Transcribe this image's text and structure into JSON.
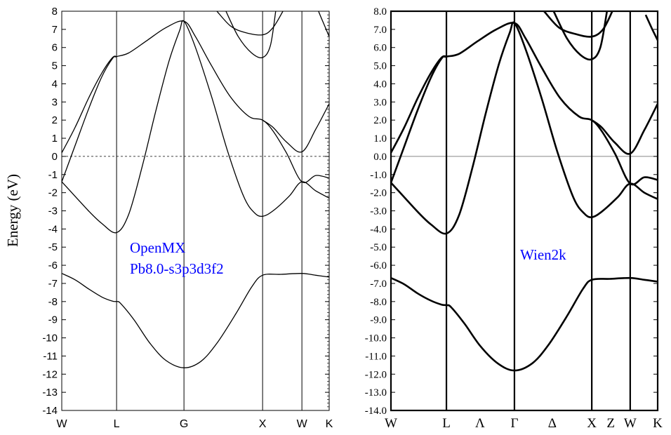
{
  "chart_data": [
    {
      "type": "line",
      "title": "",
      "ylabel": "Energy (eV)",
      "ylim": [
        -14,
        8
      ],
      "yticks": [
        8,
        7,
        6,
        5,
        4,
        3,
        2,
        1,
        0,
        -1,
        -2,
        -3,
        -4,
        -5,
        -6,
        -7,
        -8,
        -9,
        -10,
        -11,
        -12,
        -13,
        -14
      ],
      "ytick_labels": [
        "8",
        "7",
        "6",
        "5",
        "4",
        "3",
        "2",
        "1",
        "0",
        "-1",
        "-2",
        "-3",
        "-4",
        "-5",
        "-6",
        "-7",
        "-8",
        "-9",
        "-10",
        "-11",
        "-12",
        "-13",
        "-14"
      ],
      "kpoints": [
        {
          "label": "W",
          "k": 0,
          "line": false
        },
        {
          "label": "L",
          "k": 0.205,
          "line": true
        },
        {
          "label": "G",
          "k": 0.457,
          "line": true
        },
        {
          "label": "X",
          "k": 0.751,
          "line": true
        },
        {
          "label": "W",
          "k": 0.898,
          "line": true
        },
        {
          "label": "K",
          "k": 1,
          "line": false
        }
      ],
      "fermi_level": 0,
      "annotation": [
        "OpenMX",
        "Pb8.0-s3p3d3f2"
      ],
      "annotation_color": "#0000ff",
      "bands": [
        [
          [
            0,
            -6.45
          ],
          [
            0.05,
            -6.8
          ],
          [
            0.1,
            -7.3
          ],
          [
            0.15,
            -7.75
          ],
          [
            0.19,
            -7.98
          ],
          [
            0.205,
            -8.0
          ],
          [
            0.22,
            -8.1
          ],
          [
            0.27,
            -9.0
          ],
          [
            0.33,
            -10.3
          ],
          [
            0.39,
            -11.25
          ],
          [
            0.457,
            -11.65
          ],
          [
            0.52,
            -11.3
          ],
          [
            0.58,
            -10.3
          ],
          [
            0.65,
            -8.7
          ],
          [
            0.71,
            -7.2
          ],
          [
            0.751,
            -6.55
          ],
          [
            0.82,
            -6.5
          ],
          [
            0.898,
            -6.45
          ],
          [
            0.95,
            -6.55
          ],
          [
            1,
            -6.65
          ]
        ],
        [
          [
            0,
            -1.4
          ],
          [
            0.05,
            -2.2
          ],
          [
            0.1,
            -3.0
          ],
          [
            0.15,
            -3.7
          ],
          [
            0.205,
            -4.2
          ],
          [
            0.25,
            -3.2
          ],
          [
            0.3,
            -0.6
          ],
          [
            0.35,
            2.4
          ],
          [
            0.4,
            5.2
          ],
          [
            0.44,
            6.9
          ],
          [
            0.457,
            7.45
          ],
          [
            0.5,
            6.0
          ],
          [
            0.56,
            3.3
          ],
          [
            0.62,
            0.3
          ],
          [
            0.68,
            -2.2
          ],
          [
            0.72,
            -3.1
          ],
          [
            0.751,
            -3.3
          ],
          [
            0.79,
            -3.0
          ],
          [
            0.85,
            -2.2
          ],
          [
            0.898,
            -1.4
          ],
          [
            0.95,
            -1.9
          ],
          [
            1,
            -2.3
          ]
        ],
        [
          [
            0,
            -1.4
          ],
          [
            0.05,
            0.6
          ],
          [
            0.1,
            2.6
          ],
          [
            0.15,
            4.4
          ],
          [
            0.19,
            5.4
          ],
          [
            0.205,
            5.5
          ],
          [
            0.25,
            5.7
          ],
          [
            0.32,
            6.4
          ],
          [
            0.39,
            7.1
          ],
          [
            0.457,
            7.45
          ],
          [
            0.5,
            6.6
          ],
          [
            0.56,
            5.0
          ],
          [
            0.63,
            3.3
          ],
          [
            0.7,
            2.2
          ],
          [
            0.751,
            2.0
          ],
          [
            0.79,
            1.4
          ],
          [
            0.84,
            0.2
          ],
          [
            0.898,
            -1.4
          ],
          [
            0.95,
            -1.05
          ],
          [
            1,
            -1.2
          ]
        ],
        [
          [
            0,
            0.2
          ],
          [
            0.05,
            1.6
          ],
          [
            0.1,
            3.2
          ],
          [
            0.15,
            4.6
          ],
          [
            0.19,
            5.45
          ],
          [
            0.205,
            5.5
          ]
        ],
        [
          [
            0.751,
            2.0
          ],
          [
            0.79,
            1.6
          ],
          [
            0.84,
            0.8
          ],
          [
            0.898,
            0.25
          ],
          [
            0.95,
            1.5
          ],
          [
            1,
            2.9
          ]
        ],
        [
          [
            0.58,
            8.0
          ],
          [
            0.63,
            7.2
          ],
          [
            0.68,
            6.85
          ],
          [
            0.751,
            6.7
          ],
          [
            0.79,
            7.1
          ],
          [
            0.827,
            8.0
          ]
        ],
        [
          [
            0.614,
            8.0
          ],
          [
            0.66,
            6.6
          ],
          [
            0.71,
            5.7
          ],
          [
            0.751,
            5.45
          ],
          [
            0.78,
            6.1
          ],
          [
            0.8,
            8.0
          ]
        ],
        [
          [
            0.96,
            8.0
          ],
          [
            0.98,
            7.3
          ],
          [
            1,
            6.6
          ]
        ]
      ]
    },
    {
      "type": "line",
      "title": "",
      "ylabel": "",
      "ylim": [
        -14,
        8
      ],
      "yticks": [
        8,
        7,
        6,
        5,
        4,
        3,
        2,
        1,
        0,
        -1,
        -2,
        -3,
        -4,
        -5,
        -6,
        -7,
        -8,
        -9,
        -10,
        -11,
        -12,
        -13,
        -14
      ],
      "ytick_labels": [
        "8.0",
        "7.0",
        "6.0",
        "5.0",
        "4.0",
        "3.0",
        "2.0",
        "1.0",
        "0.0",
        "-1.0",
        "-2.0",
        "-3.0",
        "-4.0",
        "-5.0",
        "-6.0",
        "-7.0",
        "-8.0",
        "-9.0",
        "-10.0",
        "-11.0",
        "-12.0",
        "-13.0",
        "-14.0"
      ],
      "kpoints": [
        {
          "label": "W",
          "k": 0,
          "line": false
        },
        {
          "label": "L",
          "k": 0.208,
          "line": true
        },
        {
          "label": "Λ",
          "k": 0.334,
          "line": false
        },
        {
          "label": "Γ",
          "k": 0.463,
          "line": true
        },
        {
          "label": "Δ",
          "k": 0.605,
          "line": false
        },
        {
          "label": "X",
          "k": 0.753,
          "line": true
        },
        {
          "label": "Z",
          "k": 0.824,
          "line": false
        },
        {
          "label": "W",
          "k": 0.897,
          "line": true
        },
        {
          "label": "K",
          "k": 1,
          "line": false
        }
      ],
      "fermi_level": 0,
      "annotation": [
        "Wien2k"
      ],
      "annotation_color": "#0000ff",
      "bands": [
        [
          [
            0,
            -6.7
          ],
          [
            0.05,
            -7.05
          ],
          [
            0.1,
            -7.55
          ],
          [
            0.15,
            -7.95
          ],
          [
            0.19,
            -8.17
          ],
          [
            0.208,
            -8.2
          ],
          [
            0.225,
            -8.3
          ],
          [
            0.275,
            -9.2
          ],
          [
            0.335,
            -10.45
          ],
          [
            0.4,
            -11.4
          ],
          [
            0.463,
            -11.8
          ],
          [
            0.53,
            -11.4
          ],
          [
            0.59,
            -10.4
          ],
          [
            0.66,
            -8.8
          ],
          [
            0.72,
            -7.3
          ],
          [
            0.753,
            -6.8
          ],
          [
            0.82,
            -6.75
          ],
          [
            0.897,
            -6.7
          ],
          [
            0.95,
            -6.8
          ],
          [
            1,
            -6.9
          ]
        ],
        [
          [
            0,
            -1.45
          ],
          [
            0.05,
            -2.25
          ],
          [
            0.1,
            -3.05
          ],
          [
            0.15,
            -3.75
          ],
          [
            0.208,
            -4.25
          ],
          [
            0.255,
            -3.25
          ],
          [
            0.305,
            -0.65
          ],
          [
            0.355,
            2.35
          ],
          [
            0.405,
            5.1
          ],
          [
            0.445,
            6.8
          ],
          [
            0.463,
            7.35
          ],
          [
            0.505,
            5.9
          ],
          [
            0.565,
            3.2
          ],
          [
            0.625,
            0.2
          ],
          [
            0.685,
            -2.3
          ],
          [
            0.725,
            -3.15
          ],
          [
            0.753,
            -3.35
          ],
          [
            0.79,
            -3.05
          ],
          [
            0.85,
            -2.25
          ],
          [
            0.897,
            -1.5
          ],
          [
            0.95,
            -2.0
          ],
          [
            1,
            -2.35
          ]
        ],
        [
          [
            0,
            -1.45
          ],
          [
            0.05,
            0.55
          ],
          [
            0.1,
            2.55
          ],
          [
            0.15,
            4.35
          ],
          [
            0.19,
            5.4
          ],
          [
            0.208,
            5.5
          ],
          [
            0.255,
            5.65
          ],
          [
            0.325,
            6.35
          ],
          [
            0.395,
            7.0
          ],
          [
            0.463,
            7.35
          ],
          [
            0.505,
            6.5
          ],
          [
            0.565,
            4.9
          ],
          [
            0.635,
            3.2
          ],
          [
            0.705,
            2.2
          ],
          [
            0.753,
            2.0
          ],
          [
            0.79,
            1.4
          ],
          [
            0.84,
            0.15
          ],
          [
            0.897,
            -1.5
          ],
          [
            0.95,
            -1.15
          ],
          [
            1,
            -1.3
          ]
        ],
        [
          [
            0,
            0.2
          ],
          [
            0.05,
            1.6
          ],
          [
            0.1,
            3.2
          ],
          [
            0.15,
            4.6
          ],
          [
            0.19,
            5.45
          ],
          [
            0.208,
            5.5
          ]
        ],
        [
          [
            0.753,
            2.0
          ],
          [
            0.79,
            1.6
          ],
          [
            0.84,
            0.75
          ],
          [
            0.897,
            0.15
          ],
          [
            0.95,
            1.45
          ],
          [
            1,
            2.9
          ]
        ],
        [
          [
            0.574,
            8.0
          ],
          [
            0.63,
            7.1
          ],
          [
            0.69,
            6.75
          ],
          [
            0.753,
            6.6
          ],
          [
            0.795,
            7.0
          ],
          [
            0.83,
            8.0
          ]
        ],
        [
          [
            0.61,
            8.0
          ],
          [
            0.66,
            6.5
          ],
          [
            0.71,
            5.6
          ],
          [
            0.753,
            5.35
          ],
          [
            0.785,
            6.0
          ],
          [
            0.81,
            8.0
          ]
        ],
        [
          [
            0.955,
            7.8
          ],
          [
            0.98,
            7.0
          ],
          [
            1,
            6.4
          ]
        ]
      ]
    }
  ]
}
